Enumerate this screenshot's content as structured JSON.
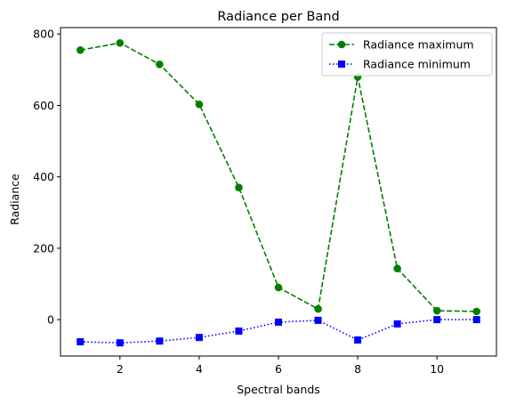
{
  "chart_data": {
    "type": "line",
    "title": "Radiance per Band",
    "xlabel": "Spectral bands",
    "ylabel": "Radiance",
    "x": [
      1,
      2,
      3,
      4,
      5,
      6,
      7,
      8,
      9,
      10,
      11
    ],
    "xlim": [
      0.5,
      11.5
    ],
    "ylim": [
      -102,
      818
    ],
    "xticks": [
      2,
      4,
      6,
      8,
      10
    ],
    "yticks": [
      0,
      200,
      400,
      600,
      800
    ],
    "grid": false,
    "legend_position": "top-right",
    "series": [
      {
        "name": "Radiance maximum",
        "color": "#008000",
        "linestyle": "dashed",
        "marker": "circle",
        "values": [
          755,
          775,
          715,
          603,
          370,
          90,
          30,
          680,
          143,
          25,
          23
        ]
      },
      {
        "name": "Radiance minimum",
        "color": "#0000ff",
        "linestyle": "dotted",
        "marker": "square",
        "values": [
          -62,
          -65,
          -60,
          -50,
          -32,
          -7,
          -2,
          -57,
          -12,
          0,
          0
        ]
      }
    ]
  }
}
